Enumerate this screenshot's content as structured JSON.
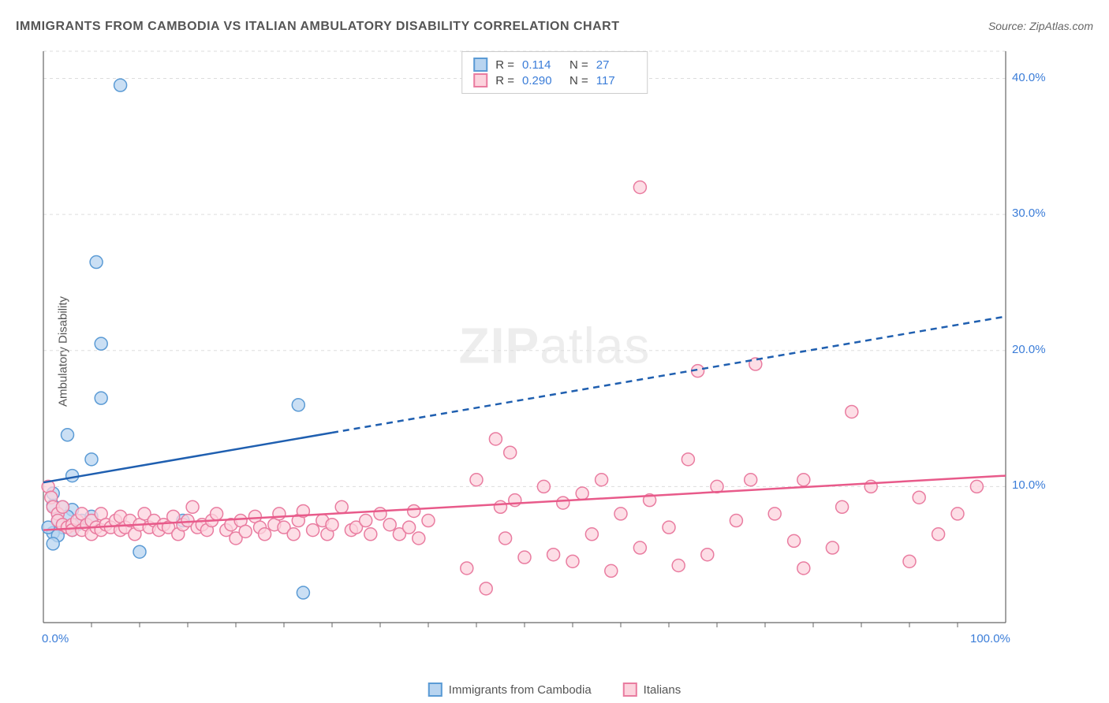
{
  "chart": {
    "title": "IMMIGRANTS FROM CAMBODIA VS ITALIAN AMBULATORY DISABILITY CORRELATION CHART",
    "source": "Source: ZipAtlas.com",
    "watermark_bold": "ZIP",
    "watermark_light": "atlas",
    "type": "scatter",
    "y_axis_label": "Ambulatory Disability",
    "background_color": "#ffffff",
    "grid_color": "#dddddd",
    "axis_line_color": "#666666",
    "xlim": [
      0,
      100
    ],
    "ylim": [
      0,
      42
    ],
    "x_ticks": [
      {
        "pos": 0,
        "label": "0.0%"
      },
      {
        "pos": 100,
        "label": "100.0%"
      }
    ],
    "x_minor_ticks": [
      5,
      10,
      15,
      20,
      25,
      30,
      35,
      40,
      45,
      50,
      55,
      60,
      65,
      70,
      75,
      80,
      85,
      90,
      95
    ],
    "y_ticks": [
      {
        "pos": 10,
        "label": "10.0%"
      },
      {
        "pos": 20,
        "label": "20.0%"
      },
      {
        "pos": 30,
        "label": "30.0%"
      },
      {
        "pos": 40,
        "label": "40.0%"
      }
    ],
    "stats": [
      {
        "swatch_fill": "#b8d4f0",
        "swatch_stroke": "#5b9bd5",
        "R_label": "R = ",
        "R": "0.114",
        "N_label": "N = ",
        "N": "27",
        "value_color": "#3b7dd8"
      },
      {
        "swatch_fill": "#fcd3dd",
        "swatch_stroke": "#e97ca0",
        "R_label": "R = ",
        "R": "0.290",
        "N_label": "N = ",
        "N": "117",
        "value_color": "#3b7dd8"
      }
    ],
    "x_legend": [
      {
        "swatch_fill": "#b8d4f0",
        "swatch_stroke": "#5b9bd5",
        "label": "Immigrants from Cambodia"
      },
      {
        "swatch_fill": "#fcd3dd",
        "swatch_stroke": "#e97ca0",
        "label": "Italians"
      }
    ],
    "series": [
      {
        "name": "cambodia",
        "marker_fill": "#b8d4f0",
        "marker_stroke": "#5b9bd5",
        "marker_radius": 8,
        "marker_opacity": 0.75,
        "trend_color": "#1f5fb0",
        "trend_width": 2.5,
        "trend_solid_range": [
          0,
          30
        ],
        "trend_dashed_range": [
          30,
          100
        ],
        "trend_y_start": 10.3,
        "trend_y_end": 22.5,
        "points": [
          [
            8.0,
            39.5
          ],
          [
            5.5,
            26.5
          ],
          [
            6.0,
            20.5
          ],
          [
            6.0,
            16.5
          ],
          [
            2.5,
            13.8
          ],
          [
            5.0,
            12.0
          ],
          [
            3.0,
            10.8
          ],
          [
            3.0,
            8.3
          ],
          [
            1.0,
            9.5
          ],
          [
            1.0,
            8.6
          ],
          [
            1.5,
            8.0
          ],
          [
            1.5,
            7.5
          ],
          [
            2.0,
            7.0
          ],
          [
            3.0,
            6.8
          ],
          [
            1.0,
            6.6
          ],
          [
            1.5,
            6.4
          ],
          [
            2.0,
            8.5
          ],
          [
            2.5,
            7.8
          ],
          [
            0.5,
            7.0
          ],
          [
            3.5,
            7.2
          ],
          [
            4.0,
            7.5
          ],
          [
            1.0,
            5.8
          ],
          [
            10.0,
            5.2
          ],
          [
            14.5,
            7.5
          ],
          [
            26.5,
            16.0
          ],
          [
            27.0,
            2.2
          ],
          [
            5.0,
            7.8
          ]
        ]
      },
      {
        "name": "italians",
        "marker_fill": "#fcd3dd",
        "marker_stroke": "#e97ca0",
        "marker_radius": 8,
        "marker_opacity": 0.75,
        "trend_color": "#e85a8a",
        "trend_width": 2.5,
        "trend_solid_range": [
          0,
          100
        ],
        "trend_dashed_range": null,
        "trend_y_start": 6.8,
        "trend_y_end": 10.8,
        "points": [
          [
            0.5,
            10.0
          ],
          [
            0.8,
            9.2
          ],
          [
            1.0,
            8.5
          ],
          [
            1.5,
            8.0
          ],
          [
            1.5,
            7.5
          ],
          [
            2.0,
            7.2
          ],
          [
            2.0,
            8.5
          ],
          [
            2.5,
            7.0
          ],
          [
            3.0,
            7.2
          ],
          [
            3.0,
            6.8
          ],
          [
            3.5,
            7.5
          ],
          [
            4.0,
            8.0
          ],
          [
            4.0,
            6.8
          ],
          [
            4.5,
            7.2
          ],
          [
            5.0,
            7.5
          ],
          [
            5.0,
            6.5
          ],
          [
            5.5,
            7.0
          ],
          [
            6.0,
            8.0
          ],
          [
            6.0,
            6.8
          ],
          [
            6.5,
            7.2
          ],
          [
            7.0,
            7.0
          ],
          [
            7.5,
            7.5
          ],
          [
            8.0,
            6.8
          ],
          [
            8.0,
            7.8
          ],
          [
            8.5,
            7.0
          ],
          [
            9.0,
            7.5
          ],
          [
            9.5,
            6.5
          ],
          [
            10.0,
            7.2
          ],
          [
            10.5,
            8.0
          ],
          [
            11.0,
            7.0
          ],
          [
            11.5,
            7.5
          ],
          [
            12.0,
            6.8
          ],
          [
            12.5,
            7.2
          ],
          [
            13.0,
            7.0
          ],
          [
            13.5,
            7.8
          ],
          [
            14.0,
            6.5
          ],
          [
            14.5,
            7.2
          ],
          [
            15.0,
            7.5
          ],
          [
            15.5,
            8.5
          ],
          [
            16.0,
            7.0
          ],
          [
            16.5,
            7.2
          ],
          [
            17.0,
            6.8
          ],
          [
            17.5,
            7.5
          ],
          [
            18.0,
            8.0
          ],
          [
            19.0,
            6.8
          ],
          [
            19.5,
            7.2
          ],
          [
            20.0,
            6.2
          ],
          [
            20.5,
            7.5
          ],
          [
            21.0,
            6.7
          ],
          [
            22.0,
            7.8
          ],
          [
            22.5,
            7.0
          ],
          [
            23.0,
            6.5
          ],
          [
            24.0,
            7.2
          ],
          [
            24.5,
            8.0
          ],
          [
            25.0,
            7.0
          ],
          [
            26.0,
            6.5
          ],
          [
            26.5,
            7.5
          ],
          [
            27.0,
            8.2
          ],
          [
            28.0,
            6.8
          ],
          [
            29.0,
            7.5
          ],
          [
            29.5,
            6.5
          ],
          [
            30.0,
            7.2
          ],
          [
            31.0,
            8.5
          ],
          [
            32.0,
            6.8
          ],
          [
            32.5,
            7.0
          ],
          [
            33.5,
            7.5
          ],
          [
            34.0,
            6.5
          ],
          [
            35.0,
            8.0
          ],
          [
            36.0,
            7.2
          ],
          [
            37.0,
            6.5
          ],
          [
            38.0,
            7.0
          ],
          [
            38.5,
            8.2
          ],
          [
            39.0,
            6.2
          ],
          [
            40.0,
            7.5
          ],
          [
            44.0,
            4.0
          ],
          [
            45.0,
            10.5
          ],
          [
            46.0,
            2.5
          ],
          [
            47.0,
            13.5
          ],
          [
            47.5,
            8.5
          ],
          [
            48.0,
            6.2
          ],
          [
            48.5,
            12.5
          ],
          [
            49.0,
            9.0
          ],
          [
            50.0,
            4.8
          ],
          [
            52.0,
            10.0
          ],
          [
            53.0,
            5.0
          ],
          [
            54.0,
            8.8
          ],
          [
            55.0,
            4.5
          ],
          [
            56.0,
            9.5
          ],
          [
            57.0,
            6.5
          ],
          [
            58.0,
            10.5
          ],
          [
            59.0,
            3.8
          ],
          [
            60.0,
            8.0
          ],
          [
            62.0,
            32.0
          ],
          [
            62.0,
            5.5
          ],
          [
            63.0,
            9.0
          ],
          [
            65.0,
            7.0
          ],
          [
            66.0,
            4.2
          ],
          [
            67.0,
            12.0
          ],
          [
            68.0,
            18.5
          ],
          [
            69.0,
            5.0
          ],
          [
            70.0,
            10.0
          ],
          [
            72.0,
            7.5
          ],
          [
            73.5,
            10.5
          ],
          [
            74.0,
            19.0
          ],
          [
            76.0,
            8.0
          ],
          [
            78.0,
            6.0
          ],
          [
            79.0,
            10.5
          ],
          [
            79.0,
            4.0
          ],
          [
            82.0,
            5.5
          ],
          [
            83.0,
            8.5
          ],
          [
            84.0,
            15.5
          ],
          [
            86.0,
            10.0
          ],
          [
            90.0,
            4.5
          ],
          [
            91.0,
            9.2
          ],
          [
            93.0,
            6.5
          ],
          [
            95.0,
            8.0
          ],
          [
            97.0,
            10.0
          ]
        ]
      }
    ]
  }
}
